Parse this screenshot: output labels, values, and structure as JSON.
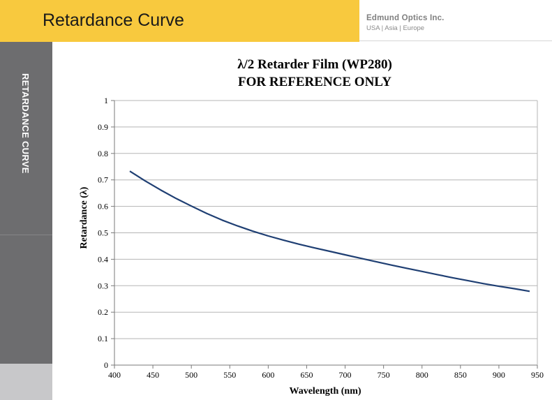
{
  "header": {
    "title": "Retardance Curve",
    "company_name": "Edmund Optics Inc.",
    "company_regions": "USA | Asia | Europe",
    "band_color": "#f8c93e"
  },
  "sidebar": {
    "label": "RETARDANCE CURVE",
    "color": "#6d6d6f"
  },
  "chart_data": {
    "type": "line",
    "title_lines": [
      "λ/2 Retarder Film (WP280)",
      "FOR REFERENCE ONLY"
    ],
    "xlabel": "Wavelength (nm)",
    "ylabel": "Retardance (λ)",
    "xlim": [
      400,
      950
    ],
    "ylim": [
      0,
      1
    ],
    "x_ticks": [
      "400",
      "450",
      "500",
      "550",
      "600",
      "650",
      "700",
      "750",
      "800",
      "850",
      "900",
      "950"
    ],
    "y_ticks": [
      "0",
      "0.1",
      "0.2",
      "0.3",
      "0.4",
      "0.5",
      "0.6",
      "0.7",
      "0.8",
      "0.9",
      "1"
    ],
    "grid": "horizontal",
    "line_color": "#1f3f73",
    "series": [
      {
        "x": [
          420,
          440,
          460,
          480,
          500,
          520,
          540,
          560,
          580,
          600,
          620,
          640,
          660,
          680,
          700,
          720,
          740,
          760,
          780,
          800,
          820,
          840,
          860,
          880,
          900,
          920,
          940
        ],
        "values": [
          0.733,
          0.696,
          0.662,
          0.63,
          0.601,
          0.573,
          0.548,
          0.526,
          0.506,
          0.488,
          0.472,
          0.457,
          0.443,
          0.43,
          0.417,
          0.404,
          0.391,
          0.378,
          0.366,
          0.354,
          0.342,
          0.33,
          0.319,
          0.308,
          0.298,
          0.289,
          0.279
        ]
      }
    ]
  }
}
